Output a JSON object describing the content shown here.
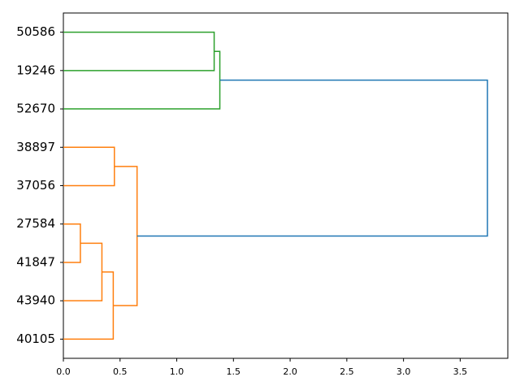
{
  "chart_data": {
    "type": "dendrogram",
    "orientation": "left",
    "categories": [
      "50586",
      "19246",
      "52670",
      "38897",
      "37056",
      "27584",
      "41847",
      "43940",
      "40105"
    ],
    "merges": [
      {
        "children": [
          0,
          1
        ],
        "height": 1.33,
        "color": "#2ca02c"
      },
      {
        "children": [
          9,
          2
        ],
        "height": 1.38,
        "color": "#2ca02c"
      },
      {
        "children": [
          3,
          4
        ],
        "height": 0.45,
        "color": "#ff7f0e"
      },
      {
        "children": [
          5,
          6
        ],
        "height": 0.15,
        "color": "#ff7f0e"
      },
      {
        "children": [
          12,
          7
        ],
        "height": 0.34,
        "color": "#ff7f0e"
      },
      {
        "children": [
          13,
          8
        ],
        "height": 0.44,
        "color": "#ff7f0e"
      },
      {
        "children": [
          11,
          14
        ],
        "height": 0.65,
        "color": "#ff7f0e"
      },
      {
        "children": [
          10,
          15
        ],
        "height": 3.74,
        "color": "#1f77b4"
      }
    ],
    "xlim": [
      0,
      3.92
    ],
    "xticks": [
      {
        "value": 0,
        "label": "0.0"
      },
      {
        "value": 0.5,
        "label": "0.5"
      },
      {
        "value": 1,
        "label": "1.0"
      },
      {
        "value": 1.5,
        "label": "1.5"
      },
      {
        "value": 2,
        "label": "2.0"
      },
      {
        "value": 2.5,
        "label": "2.5"
      },
      {
        "value": 3,
        "label": "3.0"
      },
      {
        "value": 3.5,
        "label": "3.5"
      }
    ]
  }
}
